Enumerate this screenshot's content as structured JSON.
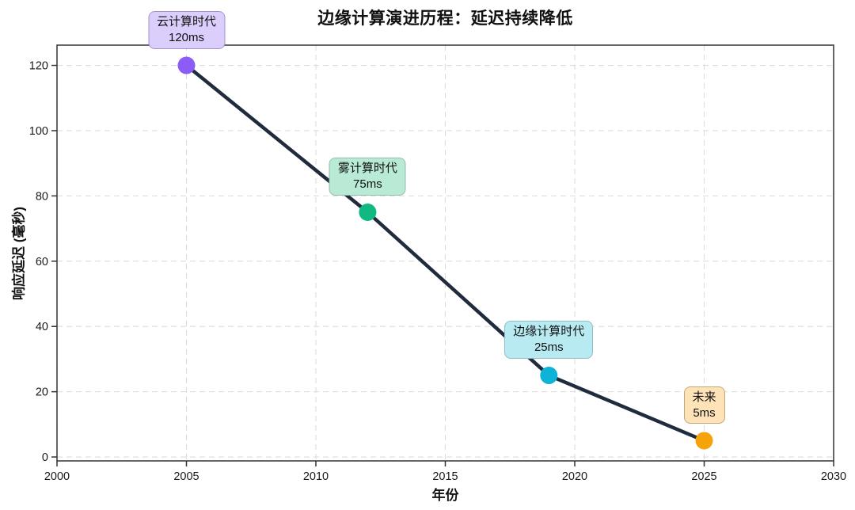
{
  "chart_data": {
    "type": "line",
    "title": "边缘计算演进历程：延迟持续降低",
    "xlabel": "年份",
    "ylabel": "响应延迟 (毫秒)",
    "xlim": [
      2000,
      2030
    ],
    "ylim": [
      -1.2,
      126.2
    ],
    "x_ticks": [
      2000,
      2005,
      2010,
      2015,
      2020,
      2025,
      2030
    ],
    "y_ticks": [
      0,
      20,
      40,
      60,
      80,
      100,
      120
    ],
    "grid": true,
    "legend": "none",
    "line_color": "#202c3e",
    "series": [
      {
        "points": [
          {
            "x": 2005,
            "y": 120,
            "color": "#8b5cf6",
            "annotation": {
              "era": "云计算时代",
              "value": "120ms",
              "box_fill": "#dccefc",
              "box_border": "#a493c9"
            }
          },
          {
            "x": 2012,
            "y": 75,
            "color": "#10b981",
            "annotation": {
              "era": "雾计算时代",
              "value": "75ms",
              "box_fill": "#b9ead5",
              "box_border": "#93bfa9"
            }
          },
          {
            "x": 2019,
            "y": 25,
            "color": "#0db4d8",
            "annotation": {
              "era": "边缘计算时代",
              "value": "25ms",
              "box_fill": "#b8eaf2",
              "box_border": "#92bcc8"
            }
          },
          {
            "x": 2025,
            "y": 5,
            "color": "#f6a309",
            "annotation": {
              "era": "未来",
              "value": "5ms",
              "box_fill": "#fde3b7",
              "box_border": "#c4a575"
            }
          }
        ]
      }
    ],
    "colors": {
      "grid": "#dcdcdc",
      "spine": "#333333",
      "tick": "#333333",
      "tick_label": "#1a1a1a",
      "background": "#ffffff"
    }
  }
}
